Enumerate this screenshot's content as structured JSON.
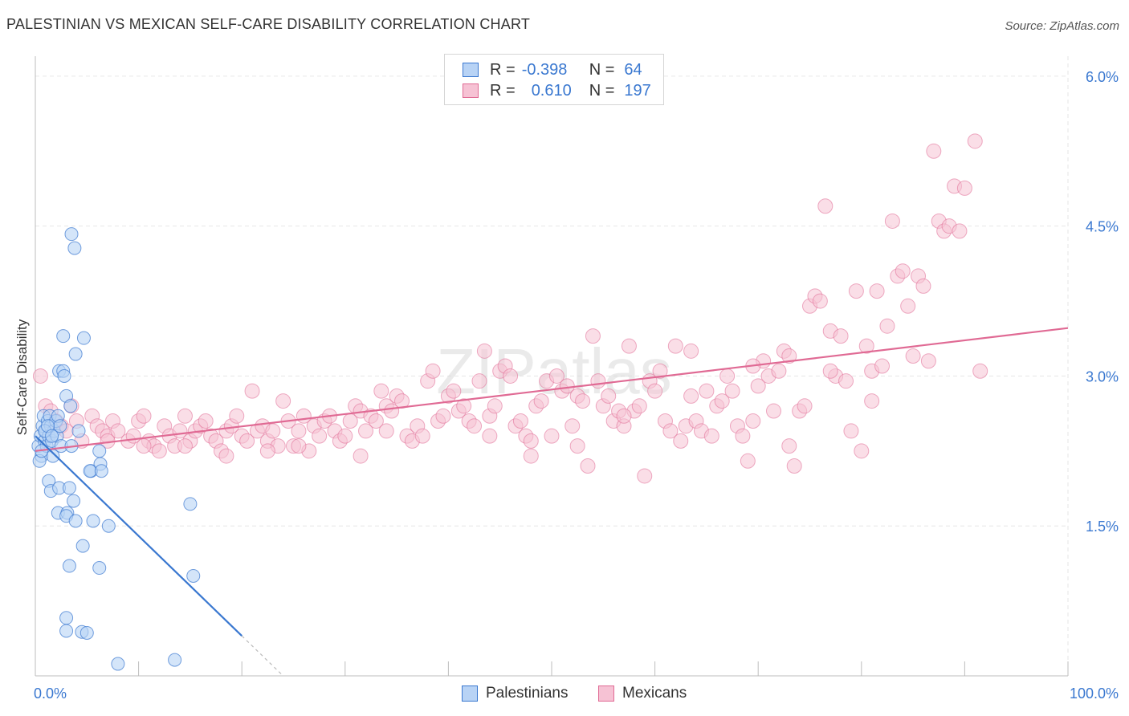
{
  "title": "PALESTINIAN VS MEXICAN SELF-CARE DISABILITY CORRELATION CHART",
  "source": "Source: ZipAtlas.com",
  "watermark": "ZIPatlas",
  "colors": {
    "palestinians": "#3a78d0",
    "palestinians_fill": "#b8d3f5",
    "mexicans": "#e06a94",
    "mexicans_fill": "#f6c2d4",
    "axis_text": "#3a78d0",
    "grid": "#e6e6e6"
  },
  "legend": {
    "rows": [
      {
        "r_label": "R =",
        "r_value": "-0.398",
        "n_label": "N =",
        "n_value": "64"
      },
      {
        "r_label": "R =",
        "r_value": "0.610",
        "n_label": "N =",
        "n_value": "197"
      }
    ]
  },
  "bottom_legend": {
    "palestinians": "Palestinians",
    "mexicans": "Mexicans"
  },
  "chart_data": {
    "type": "scatter",
    "title": "PALESTINIAN VS MEXICAN SELF-CARE DISABILITY CORRELATION CHART",
    "xlabel": "",
    "ylabel": "Self-Care Disability",
    "xlim": [
      0,
      100
    ],
    "ylim": [
      0,
      6.2
    ],
    "x_tick_labels": [
      "0.0%",
      "100.0%"
    ],
    "y_ticks": [
      1.5,
      3.0,
      4.5,
      6.0
    ],
    "y_tick_labels": [
      "1.5%",
      "3.0%",
      "4.5%",
      "6.0%"
    ],
    "grid": true,
    "legend_position": "top-center",
    "series": [
      {
        "name": "Palestinians",
        "color": "#3a78d0",
        "points": [
          [
            0.3,
            2.3
          ],
          [
            0.5,
            2.4
          ],
          [
            0.6,
            2.2
          ],
          [
            0.7,
            2.5
          ],
          [
            0.8,
            2.6
          ],
          [
            0.9,
            2.35
          ],
          [
            1.0,
            2.45
          ],
          [
            1.1,
            2.3
          ],
          [
            1.2,
            2.55
          ],
          [
            1.3,
            2.4
          ],
          [
            1.4,
            2.6
          ],
          [
            1.5,
            2.5
          ],
          [
            1.6,
            2.35
          ],
          [
            1.7,
            2.2
          ],
          [
            1.8,
            2.45
          ],
          [
            2.0,
            2.55
          ],
          [
            2.1,
            2.4
          ],
          [
            2.2,
            2.6
          ],
          [
            2.4,
            2.5
          ],
          [
            2.5,
            2.3
          ],
          [
            0.4,
            2.15
          ],
          [
            0.6,
            2.25
          ],
          [
            0.9,
            2.45
          ],
          [
            1.2,
            2.5
          ],
          [
            1.6,
            2.4
          ],
          [
            2.3,
            3.05
          ],
          [
            2.7,
            3.05
          ],
          [
            2.8,
            3.0
          ],
          [
            3.0,
            2.8
          ],
          [
            3.4,
            2.7
          ],
          [
            3.5,
            2.3
          ],
          [
            4.2,
            2.45
          ],
          [
            2.7,
            3.4
          ],
          [
            4.7,
            3.38
          ],
          [
            3.9,
            3.22
          ],
          [
            3.5,
            4.42
          ],
          [
            3.8,
            4.28
          ],
          [
            1.3,
            1.95
          ],
          [
            1.5,
            1.85
          ],
          [
            2.3,
            1.88
          ],
          [
            3.3,
            1.88
          ],
          [
            3.7,
            1.75
          ],
          [
            2.2,
            1.63
          ],
          [
            3.1,
            1.63
          ],
          [
            3.0,
            1.6
          ],
          [
            3.9,
            1.55
          ],
          [
            5.6,
            1.55
          ],
          [
            7.1,
            1.5
          ],
          [
            4.6,
            1.3
          ],
          [
            3.3,
            1.1
          ],
          [
            6.2,
            1.08
          ],
          [
            5.4,
            2.05
          ],
          [
            6.3,
            2.12
          ],
          [
            5.3,
            2.05
          ],
          [
            6.4,
            2.05
          ],
          [
            6.2,
            2.25
          ],
          [
            15.0,
            1.72
          ],
          [
            15.3,
            1.0
          ],
          [
            3.0,
            0.58
          ],
          [
            3.0,
            0.45
          ],
          [
            4.5,
            0.44
          ],
          [
            5.0,
            0.43
          ],
          [
            8.0,
            0.12
          ],
          [
            13.5,
            0.16
          ]
        ],
        "trend": {
          "x": [
            0,
            20
          ],
          "y": [
            2.4,
            0.4
          ],
          "dashed_extension": {
            "x": [
              20,
              24
            ],
            "y": [
              0.4,
              0.0
            ]
          }
        }
      },
      {
        "name": "Mexicans",
        "color": "#e06a94",
        "points": [
          [
            0.5,
            3.0
          ],
          [
            1.0,
            2.7
          ],
          [
            1.5,
            2.65
          ],
          [
            2.0,
            2.55
          ],
          [
            2.5,
            2.5
          ],
          [
            3.0,
            2.45
          ],
          [
            3.5,
            2.7
          ],
          [
            4.0,
            2.55
          ],
          [
            4.5,
            2.35
          ],
          [
            5.5,
            2.6
          ],
          [
            6.0,
            2.5
          ],
          [
            6.5,
            2.45
          ],
          [
            7.0,
            2.4
          ],
          [
            7.5,
            2.55
          ],
          [
            8.0,
            2.45
          ],
          [
            9.0,
            2.35
          ],
          [
            9.5,
            2.4
          ],
          [
            10.0,
            2.55
          ],
          [
            10.5,
            2.6
          ],
          [
            11.0,
            2.35
          ],
          [
            11.5,
            2.3
          ],
          [
            12.0,
            2.25
          ],
          [
            12.5,
            2.5
          ],
          [
            13.0,
            2.4
          ],
          [
            13.5,
            2.3
          ],
          [
            14.0,
            2.45
          ],
          [
            14.5,
            2.6
          ],
          [
            15.0,
            2.35
          ],
          [
            15.5,
            2.45
          ],
          [
            16.0,
            2.5
          ],
          [
            16.5,
            2.55
          ],
          [
            17.0,
            2.4
          ],
          [
            17.5,
            2.35
          ],
          [
            18.0,
            2.25
          ],
          [
            18.5,
            2.45
          ],
          [
            19.0,
            2.5
          ],
          [
            19.5,
            2.6
          ],
          [
            20.0,
            2.4
          ],
          [
            20.5,
            2.35
          ],
          [
            21.0,
            2.85
          ],
          [
            21.5,
            2.45
          ],
          [
            22.0,
            2.5
          ],
          [
            22.5,
            2.35
          ],
          [
            23.0,
            2.45
          ],
          [
            23.5,
            2.3
          ],
          [
            24.0,
            2.75
          ],
          [
            24.5,
            2.55
          ],
          [
            25.0,
            2.3
          ],
          [
            25.5,
            2.45
          ],
          [
            26.0,
            2.6
          ],
          [
            26.5,
            2.25
          ],
          [
            27.0,
            2.5
          ],
          [
            27.5,
            2.4
          ],
          [
            28.0,
            2.55
          ],
          [
            28.5,
            2.6
          ],
          [
            29.0,
            2.45
          ],
          [
            29.5,
            2.35
          ],
          [
            30.0,
            2.4
          ],
          [
            30.5,
            2.55
          ],
          [
            31.0,
            2.7
          ],
          [
            31.5,
            2.65
          ],
          [
            32.0,
            2.45
          ],
          [
            32.5,
            2.6
          ],
          [
            33.0,
            2.55
          ],
          [
            33.5,
            2.85
          ],
          [
            34.0,
            2.7
          ],
          [
            34.5,
            2.65
          ],
          [
            35.0,
            2.8
          ],
          [
            35.5,
            2.75
          ],
          [
            36.0,
            2.4
          ],
          [
            36.5,
            2.35
          ],
          [
            37.0,
            2.5
          ],
          [
            37.5,
            2.4
          ],
          [
            38.0,
            2.95
          ],
          [
            38.5,
            3.05
          ],
          [
            39.0,
            2.55
          ],
          [
            39.5,
            2.6
          ],
          [
            40.0,
            2.8
          ],
          [
            40.5,
            2.85
          ],
          [
            41.0,
            2.65
          ],
          [
            41.5,
            2.7
          ],
          [
            42.0,
            2.55
          ],
          [
            42.5,
            2.5
          ],
          [
            43.0,
            2.95
          ],
          [
            43.5,
            3.25
          ],
          [
            44.0,
            2.6
          ],
          [
            44.5,
            2.7
          ],
          [
            45.0,
            3.05
          ],
          [
            45.5,
            3.1
          ],
          [
            46.0,
            3.0
          ],
          [
            46.5,
            2.5
          ],
          [
            47.0,
            2.55
          ],
          [
            47.5,
            2.4
          ],
          [
            48.0,
            2.35
          ],
          [
            48.5,
            2.7
          ],
          [
            49.0,
            2.75
          ],
          [
            49.5,
            2.95
          ],
          [
            50.0,
            2.4
          ],
          [
            50.5,
            3.0
          ],
          [
            51.0,
            2.85
          ],
          [
            51.5,
            2.9
          ],
          [
            52.0,
            2.5
          ],
          [
            52.5,
            2.8
          ],
          [
            53.0,
            2.75
          ],
          [
            53.5,
            2.1
          ],
          [
            54.0,
            3.4
          ],
          [
            54.5,
            2.95
          ],
          [
            55.0,
            2.7
          ],
          [
            55.5,
            2.8
          ],
          [
            56.0,
            2.55
          ],
          [
            56.5,
            2.65
          ],
          [
            57.0,
            2.5
          ],
          [
            57.5,
            3.3
          ],
          [
            58.0,
            2.65
          ],
          [
            58.5,
            2.7
          ],
          [
            59.0,
            2.0
          ],
          [
            59.5,
            2.95
          ],
          [
            60.0,
            2.85
          ],
          [
            60.5,
            3.05
          ],
          [
            61.0,
            2.55
          ],
          [
            61.5,
            2.45
          ],
          [
            62.0,
            3.3
          ],
          [
            62.5,
            2.35
          ],
          [
            63.0,
            2.5
          ],
          [
            63.5,
            3.25
          ],
          [
            64.0,
            2.55
          ],
          [
            64.5,
            2.45
          ],
          [
            65.0,
            2.85
          ],
          [
            65.5,
            2.4
          ],
          [
            66.0,
            2.7
          ],
          [
            66.5,
            2.75
          ],
          [
            67.0,
            3.0
          ],
          [
            67.5,
            2.85
          ],
          [
            68.0,
            2.5
          ],
          [
            68.5,
            2.4
          ],
          [
            69.0,
            2.15
          ],
          [
            69.5,
            2.55
          ],
          [
            70.0,
            2.9
          ],
          [
            70.5,
            3.15
          ],
          [
            71.0,
            3.0
          ],
          [
            71.5,
            2.65
          ],
          [
            72.0,
            3.05
          ],
          [
            72.5,
            3.25
          ],
          [
            73.0,
            2.3
          ],
          [
            73.5,
            2.1
          ],
          [
            74.0,
            2.65
          ],
          [
            74.5,
            2.7
          ],
          [
            75.0,
            3.7
          ],
          [
            75.5,
            3.8
          ],
          [
            76.0,
            3.75
          ],
          [
            76.5,
            4.7
          ],
          [
            77.0,
            3.45
          ],
          [
            77.5,
            3.0
          ],
          [
            78.0,
            3.4
          ],
          [
            78.5,
            2.95
          ],
          [
            79.0,
            2.45
          ],
          [
            79.5,
            3.85
          ],
          [
            80.0,
            2.25
          ],
          [
            80.5,
            3.3
          ],
          [
            81.0,
            3.05
          ],
          [
            81.5,
            3.85
          ],
          [
            82.0,
            3.1
          ],
          [
            82.5,
            3.5
          ],
          [
            83.0,
            4.55
          ],
          [
            83.5,
            4.0
          ],
          [
            84.0,
            4.05
          ],
          [
            84.5,
            3.7
          ],
          [
            85.0,
            3.2
          ],
          [
            85.5,
            4.0
          ],
          [
            86.0,
            3.9
          ],
          [
            86.5,
            3.15
          ],
          [
            87.0,
            5.25
          ],
          [
            87.5,
            4.55
          ],
          [
            88.0,
            4.45
          ],
          [
            88.5,
            4.5
          ],
          [
            89.0,
            4.9
          ],
          [
            89.5,
            4.45
          ],
          [
            90.0,
            4.88
          ],
          [
            91.0,
            5.35
          ],
          [
            91.5,
            3.05
          ],
          [
            73.0,
            3.2
          ],
          [
            69.5,
            3.1
          ],
          [
            57.0,
            2.6
          ],
          [
            44.0,
            2.4
          ],
          [
            31.5,
            2.2
          ],
          [
            25.5,
            2.3
          ],
          [
            22.5,
            2.25
          ],
          [
            18.5,
            2.2
          ],
          [
            14.5,
            2.3
          ],
          [
            10.5,
            2.3
          ],
          [
            7.0,
            2.35
          ],
          [
            48.0,
            2.2
          ],
          [
            63.5,
            2.8
          ],
          [
            77.0,
            3.05
          ],
          [
            81.0,
            2.75
          ],
          [
            52.5,
            2.3
          ],
          [
            34.0,
            2.45
          ]
        ],
        "trend": {
          "x": [
            0,
            100
          ],
          "y": [
            2.25,
            3.48
          ]
        }
      }
    ]
  }
}
